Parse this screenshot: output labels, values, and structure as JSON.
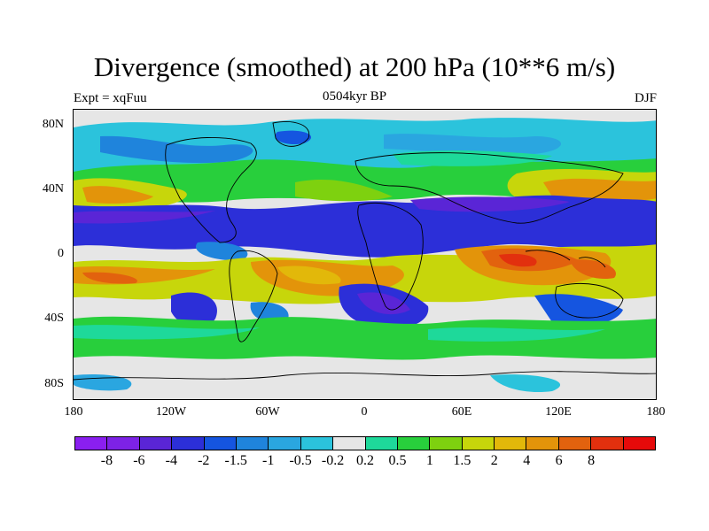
{
  "title": "Divergence (smoothed) at 200 hPa (10**6 m/s)",
  "left_label": "Expt = xqFuu",
  "center_label": "0504kyr BP",
  "right_label": "DJF",
  "lat_ticks": [
    "80N",
    "40N",
    "0",
    "40S",
    "80S"
  ],
  "lon_ticks": [
    "180",
    "120W",
    "60W",
    "0",
    "60E",
    "120E",
    "180"
  ],
  "colorbar": {
    "colors": [
      "#8a1ff0",
      "#7d22e6",
      "#5a25d6",
      "#2c2fd8",
      "#1555e0",
      "#1f84dc",
      "#2aa6e0",
      "#2bc3dc",
      "#e6e6e6",
      "#1ed99a",
      "#28cf3c",
      "#7ed10f",
      "#c7d60b",
      "#e2b80a",
      "#e3940a",
      "#e2620e",
      "#e2300e",
      "#e60a0a"
    ],
    "labels": [
      "-8",
      "-6",
      "-4",
      "-2",
      "-1.5",
      "-1",
      "-0.5",
      "-0.2",
      "0.2",
      "0.5",
      "1",
      "1.5",
      "2",
      "4",
      "6",
      "8"
    ]
  }
}
